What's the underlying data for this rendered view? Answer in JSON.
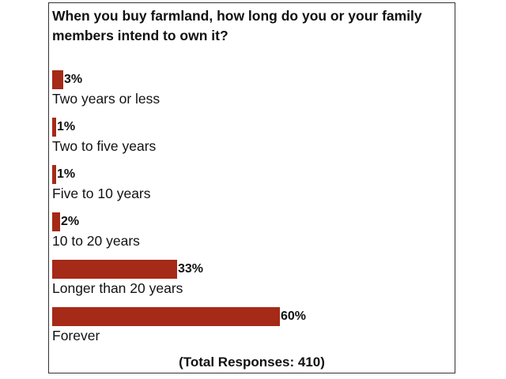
{
  "chart_data": {
    "type": "bar",
    "orientation": "horizontal",
    "title": "When you buy farmland, how long do you or your family members intend to own it?",
    "categories": [
      "Two years or less",
      "Two to five years",
      "Five to 10 years",
      "10 to 20 years",
      "Longer than 20 years",
      "Forever"
    ],
    "values": [
      3,
      1,
      1,
      2,
      33,
      60
    ],
    "labels": [
      "3%",
      "1%",
      "1%",
      "2%",
      "33%",
      "60%"
    ],
    "unit": "%",
    "xlim": [
      0,
      100
    ],
    "grid": false,
    "bar_color": "#a52a17",
    "footer": "(Total Responses: 410)"
  }
}
